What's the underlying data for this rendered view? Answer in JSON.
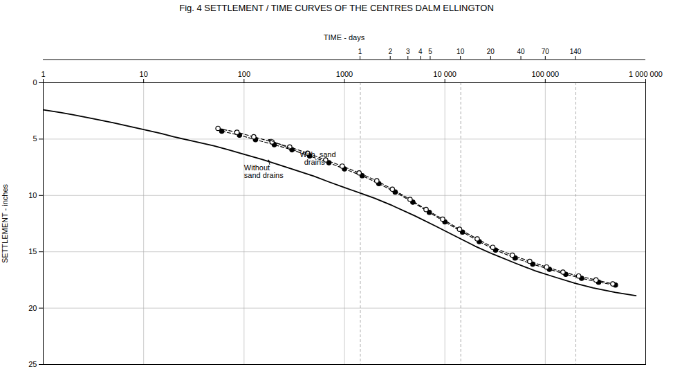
{
  "chart_data": {
    "type": "line",
    "title": "Fig. 4  SETTLEMENT / TIME CURVES OF THE CENTRES DALM ELLINGTON",
    "ylabel": "SETTLEMENT - inches",
    "x2label": "TIME - days",
    "log": "x",
    "grid": true,
    "xlim": [
      1,
      1000000
    ],
    "xticks": [
      1,
      10,
      100,
      1000,
      {
        "value": 10000,
        "label": "10 000"
      },
      {
        "value": 100000,
        "label": "100 000"
      },
      {
        "value": 1000000,
        "label": "1 000 000"
      }
    ],
    "x2ticks": [
      {
        "value": 1440,
        "label": "1"
      },
      {
        "value": 2880,
        "label": "2"
      },
      {
        "value": 4320,
        "label": "3"
      },
      {
        "value": 5760,
        "label": "4"
      },
      {
        "value": 7200,
        "label": "5"
      },
      {
        "value": 14400,
        "label": "10"
      },
      {
        "value": 28800,
        "label": "20"
      },
      {
        "value": 57600,
        "label": "40"
      },
      {
        "value": 100800,
        "label": "70"
      },
      {
        "value": 201600,
        "label": "140"
      }
    ],
    "ylim": [
      25,
      0
    ],
    "yticks": [
      0,
      5,
      10,
      15,
      20,
      25
    ],
    "vlines": [
      1440,
      14400,
      201600
    ],
    "series": [
      {
        "line_style": "solid",
        "x": [
          1,
          1.5,
          2,
          3,
          5,
          7,
          10,
          15,
          20,
          30,
          50,
          70,
          100,
          150,
          200,
          300,
          500,
          700,
          1000,
          1500,
          2000,
          3000,
          5000,
          8000,
          12000,
          20000,
          30000,
          50000,
          80000,
          120000,
          200000,
          300000,
          500000,
          800000
        ],
        "values": [
          2.4,
          2.65,
          2.85,
          3.15,
          3.55,
          3.85,
          4.15,
          4.5,
          4.8,
          5.15,
          5.6,
          5.95,
          6.35,
          6.8,
          7.15,
          7.65,
          8.3,
          8.8,
          9.3,
          9.85,
          10.25,
          10.9,
          11.8,
          12.7,
          13.5,
          14.5,
          15.2,
          16.0,
          16.7,
          17.2,
          17.8,
          18.2,
          18.6,
          18.9
        ]
      },
      {
        "line_style": "dashed",
        "marker": "filled_circle",
        "x": [
          60,
          90,
          130,
          200,
          300,
          450,
          700,
          1000,
          1500,
          2200,
          3200,
          4800,
          7000,
          10000,
          15000,
          22000,
          32000,
          50000,
          75000,
          110000,
          160000,
          230000,
          340000,
          500000
        ],
        "values": [
          4.3,
          4.65,
          5.05,
          5.5,
          5.95,
          6.5,
          7.1,
          7.65,
          8.25,
          8.95,
          9.7,
          10.6,
          11.5,
          12.35,
          13.25,
          14.1,
          14.85,
          15.55,
          16.1,
          16.55,
          17.0,
          17.35,
          17.7,
          17.95
        ]
      },
      {
        "line_style": "dashed",
        "marker": "open_circle",
        "x": [
          55,
          85,
          125,
          190,
          285,
          430,
          650,
          950,
          1400,
          2100,
          3000,
          4500,
          6500,
          9500,
          14000,
          21000,
          30000,
          47000,
          70000,
          103000,
          150000,
          215000,
          320000,
          470000
        ],
        "values": [
          4.05,
          4.4,
          4.8,
          5.25,
          5.7,
          6.25,
          6.85,
          7.4,
          8.0,
          8.7,
          9.45,
          10.35,
          11.25,
          12.1,
          13.0,
          13.85,
          14.6,
          15.3,
          15.85,
          16.35,
          16.8,
          17.15,
          17.5,
          17.85
        ]
      }
    ],
    "annotations": [
      {
        "text": "With  sand\n  drains",
        "x": 360,
        "y": 6.1
      },
      {
        "text": "Without\nsand drains",
        "x": 100,
        "y": 7.3
      }
    ],
    "arrows": [
      {
        "x1": 330,
        "y1": 6.05,
        "x2": 175,
        "y2": 5.05
      },
      {
        "x1": 180,
        "y1": 7.25,
        "x2": 175,
        "y2": 6.85
      }
    ]
  }
}
